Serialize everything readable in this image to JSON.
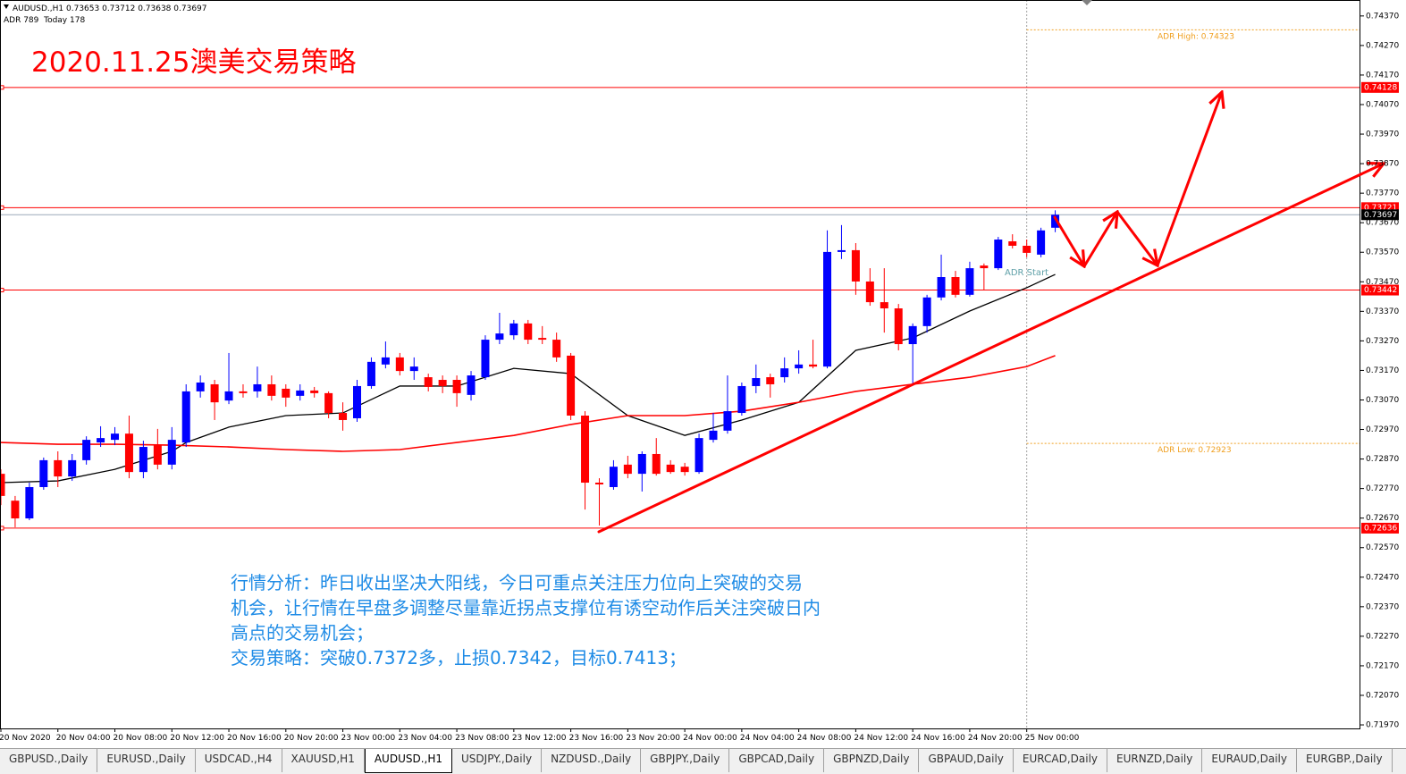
{
  "chart_data": {
    "type": "candlestick",
    "symbol": "AUDUSD.,H1",
    "adr_info": "ADR 789  Today 178",
    "title": "2020.11.25澳美交易策略",
    "up_color": "#0000ff",
    "down_color": "#ff0000",
    "ylim": [
      0.71958,
      0.74424
    ],
    "yticks": [
      {
        "value": 0.7437,
        "label": "0.74370"
      },
      {
        "value": 0.7427,
        "label": "0.74270"
      },
      {
        "value": 0.7417,
        "label": "0.74170"
      },
      {
        "value": 0.7407,
        "label": "0.74070"
      },
      {
        "value": 0.7397,
        "label": "0.73970"
      },
      {
        "value": 0.7387,
        "label": "0.73870"
      },
      {
        "value": 0.7377,
        "label": "0.73770"
      },
      {
        "value": 0.7367,
        "label": "0.73670"
      },
      {
        "value": 0.7357,
        "label": "0.73570"
      },
      {
        "value": 0.7347,
        "label": "0.73470"
      },
      {
        "value": 0.7337,
        "label": "0.73370"
      },
      {
        "value": 0.7327,
        "label": "0.73270"
      },
      {
        "value": 0.7317,
        "label": "0.73170"
      },
      {
        "value": 0.7307,
        "label": "0.73070"
      },
      {
        "value": 0.7297,
        "label": "0.72970"
      },
      {
        "value": 0.7287,
        "label": "0.72870"
      },
      {
        "value": 0.7277,
        "label": "0.72770"
      },
      {
        "value": 0.7267,
        "label": "0.72670"
      },
      {
        "value": 0.7257,
        "label": "0.72570"
      },
      {
        "value": 0.7247,
        "label": "0.72470"
      },
      {
        "value": 0.7237,
        "label": "0.72370"
      },
      {
        "value": 0.7227,
        "label": "0.72270"
      },
      {
        "value": 0.7217,
        "label": "0.72170"
      },
      {
        "value": 0.7207,
        "label": "0.72070"
      },
      {
        "value": 0.7197,
        "label": "0.71970"
      }
    ],
    "categories": [
      "20 Nov 2020",
      null,
      null,
      null,
      "20 Nov 04:00",
      null,
      null,
      null,
      "20 Nov 08:00",
      null,
      null,
      null,
      "20 Nov 12:00",
      null,
      null,
      null,
      "20 Nov 16:00",
      null,
      null,
      null,
      "20 Nov 20:00",
      null,
      null,
      null,
      "23 Nov 00:00",
      null,
      null,
      null,
      "23 Nov 04:00",
      null,
      null,
      null,
      "23 Nov 08:00",
      null,
      null,
      null,
      "23 Nov 12:00",
      null,
      null,
      null,
      "23 Nov 16:00",
      null,
      null,
      null,
      "23 Nov 20:00",
      null,
      null,
      null,
      "24 Nov 00:00",
      null,
      null,
      null,
      "24 Nov 04:00",
      null,
      null,
      null,
      "24 Nov 08:00",
      null,
      null,
      null,
      "24 Nov 12:00",
      null,
      null,
      null,
      "24 Nov 16:00",
      null,
      null,
      null,
      "24 Nov 20:00",
      null,
      null,
      null,
      "25 Nov 00:00",
      null,
      null
    ],
    "open": [
      0.7282,
      0.72729,
      0.72669,
      0.72775,
      0.72866,
      0.72811,
      0.72866,
      0.72926,
      0.72935,
      0.72956,
      0.72826,
      0.72917,
      0.72851,
      0.72926,
      0.73099,
      0.73123,
      0.73068,
      0.73099,
      0.73099,
      0.73123,
      0.73108,
      0.73084,
      0.73102,
      0.73093,
      0.73026,
      0.73008,
      0.73117,
      0.7319,
      0.73214,
      0.73168,
      0.73147,
      0.73138,
      0.73138,
      0.73087,
      0.73147,
      0.73274,
      0.73289,
      0.73329,
      0.7328,
      0.73274,
      0.7322,
      0.73017,
      0.7279,
      0.72775,
      0.72851,
      0.7282,
      0.72887,
      0.72851,
      0.72844,
      0.72826,
      0.72935,
      0.72966,
      0.73026,
      0.73117,
      0.73147,
      0.73147,
      0.73177,
      0.7319,
      0.73183,
      0.73571,
      0.73577,
      0.73471,
      0.73401,
      0.7338,
      0.73259,
      0.7332,
      0.73417,
      0.73486,
      0.73426,
      0.73525,
      0.73516,
      0.73607,
      0.73592,
      0.73562,
      0.73653
    ],
    "high": [
      0.72835,
      0.72745,
      0.7279,
      0.72875,
      0.72896,
      0.72887,
      0.72947,
      0.72981,
      0.72978,
      0.73017,
      0.72932,
      0.72972,
      0.72978,
      0.73123,
      0.73153,
      0.73138,
      0.73229,
      0.73123,
      0.73183,
      0.73153,
      0.73123,
      0.73123,
      0.73114,
      0.73099,
      0.73062,
      0.73138,
      0.73214,
      0.73268,
      0.73229,
      0.73214,
      0.73159,
      0.73153,
      0.73153,
      0.73168,
      0.73289,
      0.73365,
      0.73341,
      0.73341,
      0.7332,
      0.73298,
      0.73229,
      0.73032,
      0.72805,
      0.72866,
      0.72881,
      0.72896,
      0.72941,
      0.72866,
      0.72857,
      0.72956,
      0.73026,
      0.73153,
      0.73129,
      0.7319,
      0.73159,
      0.73214,
      0.73238,
      0.73274,
      0.73644,
      0.73662,
      0.73601,
      0.73516,
      0.73516,
      0.73395,
      0.73329,
      0.73426,
      0.73562,
      0.73507,
      0.73538,
      0.73532,
      0.73622,
      0.73631,
      0.73613,
      0.73653,
      0.73712
    ],
    "low": [
      0.72714,
      0.72639,
      0.72663,
      0.72766,
      0.72775,
      0.72796,
      0.72851,
      0.72911,
      0.72917,
      0.72805,
      0.72805,
      0.72835,
      0.72835,
      0.72911,
      0.73078,
      0.73002,
      0.73056,
      0.73078,
      0.73078,
      0.73068,
      0.73047,
      0.73068,
      0.73078,
      0.73008,
      0.72966,
      0.72996,
      0.73108,
      0.73177,
      0.73153,
      0.73138,
      0.73099,
      0.73093,
      0.73047,
      0.73068,
      0.73138,
      0.73259,
      0.73274,
      0.73259,
      0.73259,
      0.73199,
      0.73002,
      0.72699,
      0.72645,
      0.72766,
      0.72805,
      0.7276,
      0.72814,
      0.7282,
      0.72814,
      0.7282,
      0.72926,
      0.72956,
      0.73017,
      0.73093,
      0.73078,
      0.73129,
      0.73159,
      0.73177,
      0.73177,
      0.73547,
      0.73426,
      0.73389,
      0.73298,
      0.73238,
      0.73123,
      0.73298,
      0.73407,
      0.73417,
      0.7342,
      0.73441,
      0.7351,
      0.73583,
      0.73553,
      0.73553,
      0.73638
    ],
    "close": [
      0.72745,
      0.72669,
      0.72775,
      0.72866,
      0.72811,
      0.72866,
      0.72935,
      0.72941,
      0.72956,
      0.72826,
      0.72911,
      0.72851,
      0.72935,
      0.73099,
      0.73129,
      0.73062,
      0.73099,
      0.73093,
      0.73123,
      0.73084,
      0.73078,
      0.73102,
      0.73093,
      0.73026,
      0.73002,
      0.73117,
      0.73199,
      0.73214,
      0.73168,
      0.73183,
      0.73114,
      0.73117,
      0.73093,
      0.73153,
      0.73274,
      0.73295,
      0.73329,
      0.73274,
      0.73274,
      0.73214,
      0.73017,
      0.7279,
      0.72784,
      0.72844,
      0.7282,
      0.72887,
      0.7282,
      0.72826,
      0.72826,
      0.72941,
      0.72966,
      0.73032,
      0.73117,
      0.73144,
      0.73123,
      0.73177,
      0.7319,
      0.73183,
      0.73571,
      0.73577,
      0.73471,
      0.73401,
      0.7338,
      0.73259,
      0.7332,
      0.73417,
      0.73486,
      0.73426,
      0.73516,
      0.73516,
      0.73613,
      0.73592,
      0.73568,
      0.73644,
      0.73697
    ],
    "series": [
      {
        "color": "#000000",
        "x": [
          0,
          4,
          8,
          12,
          13,
          16,
          20,
          24,
          28,
          32,
          36,
          40,
          44,
          48,
          52,
          56,
          60,
          64,
          68,
          72,
          74
        ],
        "values": [
          0.7279,
          0.72796,
          0.72835,
          0.72896,
          0.72926,
          0.72978,
          0.73017,
          0.73026,
          0.73117,
          0.73117,
          0.73177,
          0.73159,
          0.73017,
          0.7295,
          0.73002,
          0.73062,
          0.73238,
          0.7328,
          0.73371,
          0.7345,
          0.73495
        ]
      },
      {
        "color": "#ff0000",
        "x": [
          0,
          4,
          8,
          12,
          16,
          20,
          24,
          28,
          32,
          36,
          40,
          44,
          48,
          52,
          56,
          60,
          64,
          68,
          72,
          74
        ],
        "values": [
          0.72926,
          0.7292,
          0.7292,
          0.72917,
          0.72911,
          0.72902,
          0.72896,
          0.72902,
          0.72926,
          0.7295,
          0.72987,
          0.73017,
          0.73017,
          0.73032,
          0.73062,
          0.73099,
          0.73123,
          0.73147,
          0.73183,
          0.7322
        ]
      }
    ],
    "levels": [
      {
        "value": 0.74128,
        "color": "#ff0000"
      },
      {
        "value": 0.73721,
        "color": "#ff0000"
      },
      {
        "value": 0.73442,
        "color": "#ff0000"
      },
      {
        "value": 0.72636,
        "color": "#ff0000"
      }
    ],
    "adr_levels": [
      {
        "value": 0.74323,
        "label": "ADR High: 0.74323",
        "color": "#f0a020"
      },
      {
        "value": 0.72923,
        "label": "ADR Low: 0.72923",
        "color": "#f0a020"
      }
    ],
    "adr_start_label": "ADR Start",
    "analysis": [
      "行情分析：昨日收出坚决大阳线，今日可重点关注压力位向上突破的交易",
      "机会，让行情在早盘多调整尽量靠近拐点支撑位有诱空动作后关注突破日内",
      "高点的交易机会；",
      "交易策略：突破0.7372多，止损0.7342，目标0.7413；"
    ]
  },
  "tabs": [
    "GBPUSD.,Daily",
    "EURUSD.,Daily",
    "USDCAD.,H4",
    "XAUUSD,H1",
    "AUDUSD.,H1",
    "USDJPY.,Daily",
    "NZDUSD.,Daily",
    "GBPJPY.,Daily",
    "GBPCAD,Daily",
    "GBPNZD,Daily",
    "GBPAUD,Daily",
    "EURCAD,Daily",
    "EURNZD,Daily",
    "EURAUD,Daily",
    "EURGBP.,Daily"
  ],
  "active_tab": 4
}
